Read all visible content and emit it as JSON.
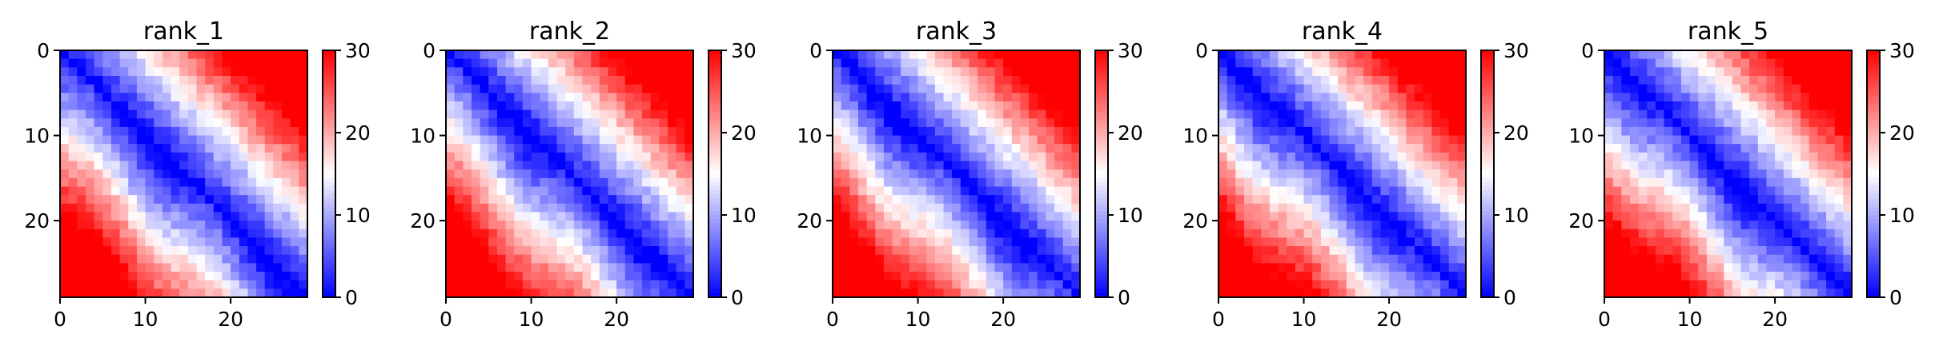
{
  "chart_data": [
    {
      "type": "heatmap",
      "title": "rank_1",
      "shape": [
        29,
        29
      ],
      "xticks": [
        "0",
        "10",
        "20"
      ],
      "yticks": [
        "0",
        "10",
        "20"
      ],
      "colorbar": {
        "min": 0,
        "max": 30,
        "ticks": [
          "0",
          "10",
          "20",
          "30"
        ],
        "colormap": "bwr"
      }
    },
    {
      "type": "heatmap",
      "title": "rank_2",
      "shape": [
        29,
        29
      ],
      "xticks": [
        "0",
        "10",
        "20"
      ],
      "yticks": [
        "0",
        "10",
        "20"
      ],
      "colorbar": {
        "min": 0,
        "max": 30,
        "ticks": [
          "0",
          "10",
          "20",
          "30"
        ],
        "colormap": "bwr"
      }
    },
    {
      "type": "heatmap",
      "title": "rank_3",
      "shape": [
        29,
        29
      ],
      "xticks": [
        "0",
        "10",
        "20"
      ],
      "yticks": [
        "0",
        "10",
        "20"
      ],
      "colorbar": {
        "min": 0,
        "max": 30,
        "ticks": [
          "0",
          "10",
          "20",
          "30"
        ],
        "colormap": "bwr"
      }
    },
    {
      "type": "heatmap",
      "title": "rank_4",
      "shape": [
        29,
        29
      ],
      "xticks": [
        "0",
        "10",
        "20"
      ],
      "yticks": [
        "0",
        "10",
        "20"
      ],
      "colorbar": {
        "min": 0,
        "max": 30,
        "ticks": [
          "0",
          "10",
          "20",
          "30"
        ],
        "colormap": "bwr"
      }
    },
    {
      "type": "heatmap",
      "title": "rank_5",
      "shape": [
        29,
        29
      ],
      "xticks": [
        "0",
        "10",
        "20"
      ],
      "yticks": [
        "0",
        "10",
        "20"
      ],
      "colorbar": {
        "min": 0,
        "max": 30,
        "ticks": [
          "0",
          "10",
          "20",
          "30"
        ],
        "colormap": "bwr"
      }
    }
  ],
  "colors": {
    "low": "#0000ff",
    "mid": "#ffffff",
    "high": "#ff0000"
  }
}
